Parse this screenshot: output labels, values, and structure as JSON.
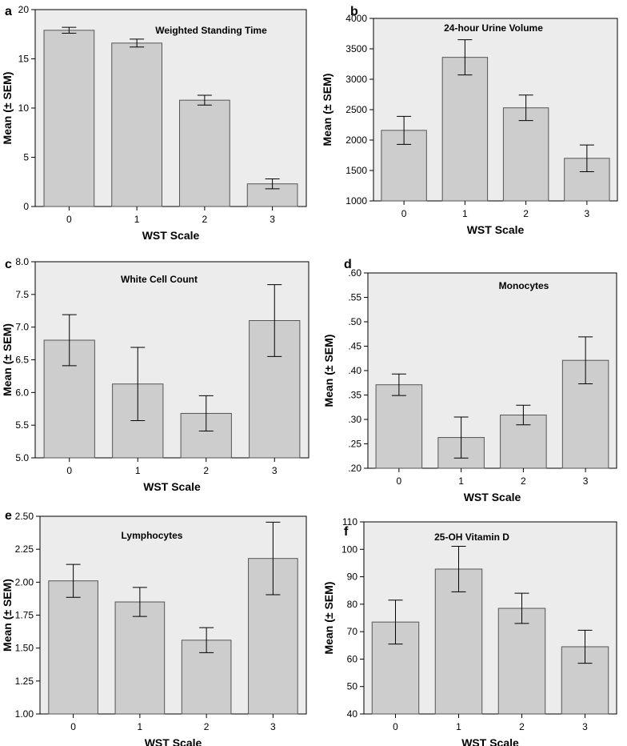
{
  "chart_data": [
    {
      "panel": "a",
      "type": "bar",
      "title": "Weighted Standing Time",
      "xlabel": "WST Scale",
      "ylabel": "Mean (± SEM)",
      "categories": [
        "0",
        "1",
        "2",
        "3"
      ],
      "values": [
        17.9,
        16.6,
        10.8,
        2.3
      ],
      "errors": [
        0.3,
        0.4,
        0.5,
        0.5
      ],
      "ylim": [
        0,
        20
      ],
      "yticks": [
        0,
        5,
        10,
        15,
        20
      ],
      "ytick_labels": [
        "0",
        "5",
        "10",
        "15",
        "20"
      ]
    },
    {
      "panel": "b",
      "type": "bar",
      "title": "24-hour Urine Volume",
      "xlabel": "WST Scale",
      "ylabel": "Mean (± SEM)",
      "categories": [
        "0",
        "1",
        "2",
        "3"
      ],
      "values": [
        2160,
        3360,
        2530,
        1700
      ],
      "errors": [
        230,
        290,
        210,
        220
      ],
      "ylim": [
        1000,
        4000
      ],
      "yticks": [
        1000,
        1500,
        2000,
        2500,
        3000,
        3500,
        4000
      ],
      "ytick_labels": [
        "1000",
        "1500",
        "2000",
        "2500",
        "3000",
        "3500",
        "4000"
      ]
    },
    {
      "panel": "c",
      "type": "bar",
      "title": "White Cell Count",
      "xlabel": "WST Scale",
      "ylabel": "Mean (± SEM)",
      "categories": [
        "0",
        "1",
        "2",
        "3"
      ],
      "values": [
        6.8,
        6.13,
        5.68,
        7.1
      ],
      "errors": [
        0.39,
        0.56,
        0.27,
        0.55
      ],
      "ylim": [
        5.0,
        8.0
      ],
      "yticks": [
        5.0,
        5.5,
        6.0,
        6.5,
        7.0,
        7.5,
        8.0
      ],
      "ytick_labels": [
        "5.0",
        "5.5",
        "6.0",
        "6.5",
        "7.0",
        "7.5",
        "8.0"
      ]
    },
    {
      "panel": "d",
      "type": "bar",
      "title": "Monocytes",
      "xlabel": "WST Scale",
      "ylabel": "Mean (± SEM)",
      "categories": [
        "0",
        "1",
        "2",
        "3"
      ],
      "values": [
        0.371,
        0.263,
        0.309,
        0.421
      ],
      "errors": [
        0.022,
        0.042,
        0.02,
        0.048
      ],
      "ylim": [
        0.2,
        0.6
      ],
      "yticks": [
        0.2,
        0.25,
        0.3,
        0.35,
        0.4,
        0.45,
        0.5,
        0.55,
        0.6
      ],
      "ytick_labels": [
        ".20",
        ".25",
        ".30",
        ".35",
        ".40",
        ".45",
        ".50",
        ".55",
        ".60"
      ]
    },
    {
      "panel": "e",
      "type": "bar",
      "title": "Lymphocytes",
      "xlabel": "WST Scale",
      "ylabel": "Mean (± SEM)",
      "categories": [
        "0",
        "1",
        "2",
        "3"
      ],
      "values": [
        2.01,
        1.85,
        1.56,
        2.18
      ],
      "errors": [
        0.125,
        0.11,
        0.095,
        0.275
      ],
      "ylim": [
        1.0,
        2.5
      ],
      "yticks": [
        1.0,
        1.25,
        1.5,
        1.75,
        2.0,
        2.25,
        2.5
      ],
      "ytick_labels": [
        "1.00",
        "1.25",
        "1.50",
        "1.75",
        "2.00",
        "2.25",
        "2.50"
      ]
    },
    {
      "panel": "f",
      "type": "bar",
      "title": "25-OH Vitamin D",
      "xlabel": "WST Scale",
      "ylabel": "Mean (± SEM)",
      "categories": [
        "0",
        "1",
        "2",
        "3"
      ],
      "values": [
        73.5,
        92.8,
        78.5,
        64.5
      ],
      "errors": [
        8.0,
        8.3,
        5.5,
        6.0
      ],
      "ylim": [
        40,
        110
      ],
      "yticks": [
        40,
        50,
        60,
        70,
        80,
        90,
        100,
        110
      ],
      "ytick_labels": [
        "40",
        "50",
        "60",
        "70",
        "80",
        "90",
        "100",
        "110"
      ]
    }
  ],
  "colors": {
    "plot_background": "#ececec",
    "bar_fill": "#cdcdcd",
    "bar_stroke": "#555555",
    "axis": "#000000"
  }
}
